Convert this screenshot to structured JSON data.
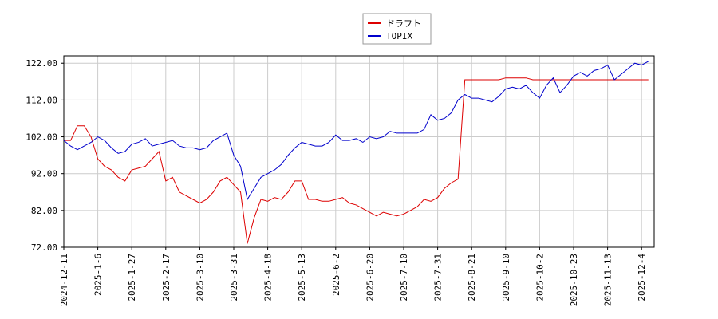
{
  "chart_data": {
    "type": "line",
    "categories": [
      "2024-12-11",
      null,
      null,
      null,
      null,
      "2025-1-6",
      null,
      null,
      null,
      null,
      "2025-1-27",
      null,
      null,
      null,
      null,
      "2025-2-17",
      null,
      null,
      null,
      null,
      "2025-3-10",
      null,
      null,
      null,
      null,
      "2025-3-31",
      null,
      null,
      null,
      null,
      "2025-4-18",
      null,
      null,
      null,
      null,
      "2025-5-13",
      null,
      null,
      null,
      null,
      "2025-6-2",
      null,
      null,
      null,
      null,
      "2025-6-20",
      null,
      null,
      null,
      null,
      "2025-7-10",
      null,
      null,
      null,
      null,
      "2025-7-31",
      null,
      null,
      null,
      null,
      "2025-8-21",
      null,
      null,
      null,
      null,
      "2025-9-10",
      null,
      null,
      null,
      null,
      "2025-10-2",
      null,
      null,
      null,
      null,
      "2025-10-23",
      null,
      null,
      null,
      null,
      "2025-11-13",
      null,
      null,
      null,
      null,
      "2025-12-4",
      null
    ],
    "series": [
      {
        "name": "ドラフト",
        "color": "#dd0000",
        "values": [
          101,
          101,
          105,
          105,
          102,
          96,
          94,
          93,
          91,
          90,
          93,
          93.5,
          94,
          96,
          98,
          90,
          91,
          87,
          86,
          85,
          84,
          85,
          87,
          90,
          91,
          89,
          87,
          73,
          80,
          85,
          84.5,
          85.5,
          85,
          87,
          90,
          90,
          85,
          85,
          84.5,
          84.5,
          85,
          85.5,
          84,
          83.5,
          82.5,
          81.5,
          80.5,
          81.5,
          81,
          80.5,
          81,
          82,
          83,
          85,
          84.5,
          85.5,
          88,
          89.5,
          90.5,
          117.5,
          117.5,
          117.5,
          117.5,
          117.5,
          117.5,
          118,
          118,
          118,
          118,
          117.5,
          117.5,
          117.5,
          117.5,
          117.5,
          117.5,
          117.5,
          117.5,
          117.5,
          117.5,
          117.5,
          117.5,
          117.5,
          117.5,
          117.5,
          117.5,
          117.5,
          117.5
        ]
      },
      {
        "name": "TOPIX",
        "color": "#0000cc",
        "values": [
          101,
          99.5,
          98.5,
          99.5,
          100.5,
          102,
          101,
          99,
          97.5,
          98,
          100,
          100.5,
          101.5,
          99.5,
          100,
          100.5,
          101,
          99.5,
          99,
          99,
          98.5,
          99,
          101,
          102,
          103,
          97,
          94,
          85,
          88,
          91,
          92,
          93,
          94.5,
          97,
          99,
          100.5,
          100,
          99.5,
          99.5,
          100.5,
          102.5,
          101,
          101,
          101.5,
          100.5,
          102,
          101.5,
          102,
          103.5,
          103,
          103,
          103,
          103,
          104,
          108,
          106.5,
          107,
          108.5,
          112,
          113.5,
          112.5,
          112.5,
          112,
          111.5,
          113,
          115,
          115.5,
          115,
          116,
          114,
          112.5,
          116,
          118,
          114,
          116,
          118.5,
          119.5,
          118.5,
          120,
          120.5,
          121.5,
          117.5,
          119,
          120.5,
          122,
          121.5,
          122.5
        ]
      }
    ],
    "ylim": [
      72,
      124
    ],
    "yticks": [
      {
        "value": 72,
        "label": "72.00"
      },
      {
        "value": 82,
        "label": "82.00"
      },
      {
        "value": 92,
        "label": "92.00"
      },
      {
        "value": 102,
        "label": "102.00"
      },
      {
        "value": 112,
        "label": "112.00"
      },
      {
        "value": 122,
        "label": "122.00"
      }
    ],
    "grid": true
  }
}
